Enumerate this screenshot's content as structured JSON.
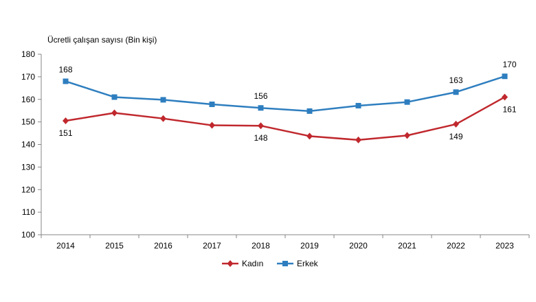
{
  "chart_data": {
    "type": "line",
    "title": "",
    "ylabel": "Ücretli çalışan sayısı (Bin kişi)",
    "xlabel": "",
    "categories": [
      "2014",
      "2015",
      "2016",
      "2017",
      "2018",
      "2019",
      "2020",
      "2021",
      "2022",
      "2023"
    ],
    "ylim": [
      100,
      180
    ],
    "yticks": [
      100,
      110,
      120,
      130,
      140,
      150,
      160,
      170,
      180
    ],
    "grid": false,
    "legend_position": "bottom",
    "series": [
      {
        "name": "Kadın",
        "color": "#c0282d",
        "marker": "diamond",
        "values": [
          150.5,
          154,
          151.5,
          148.5,
          148.3,
          143.7,
          142,
          144,
          149,
          161
        ],
        "labels": {
          "0": "151",
          "4": "148",
          "8": "149",
          "9": "161"
        }
      },
      {
        "name": "Erkek",
        "color": "#2e7ebf",
        "marker": "square",
        "values": [
          168,
          161,
          159.8,
          157.8,
          156.2,
          154.8,
          157.2,
          158.8,
          163.2,
          170.2
        ],
        "labels": {
          "0": "168",
          "4": "156",
          "8": "163",
          "9": "170"
        }
      }
    ]
  }
}
